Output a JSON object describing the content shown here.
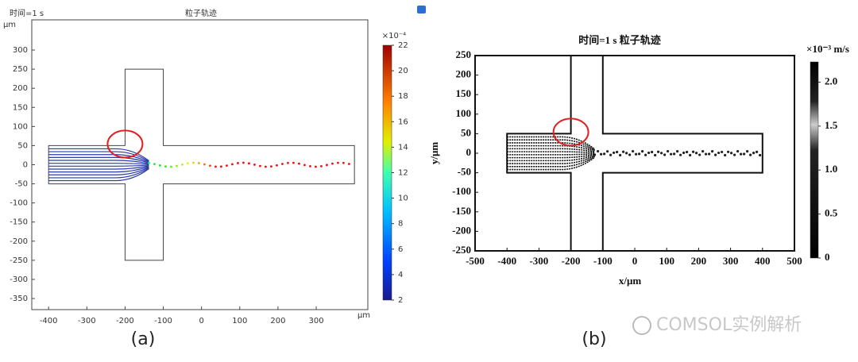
{
  "chart_data": [
    {
      "type": "trajectory",
      "subtitle": "时间=1 s",
      "title": "粒子轨迹",
      "y_label": "μm",
      "x_label": "μm",
      "xlim": [
        -444,
        435
      ],
      "xticks": [
        -400,
        -300,
        -200,
        -100,
        0,
        100,
        200,
        300
      ],
      "ylim": [
        -379,
        379
      ],
      "yticks": [
        -350,
        -300,
        -250,
        -200,
        -150,
        -100,
        -50,
        0,
        50,
        100,
        150,
        200,
        250,
        300
      ],
      "outline": {
        "x": [
          -400,
          -200,
          -200,
          -100,
          -100,
          400,
          400,
          -100,
          -100,
          -200,
          -200,
          -400
        ],
        "y": [
          50,
          50,
          250,
          250,
          50,
          50,
          -50,
          -50,
          -250,
          -250,
          -50,
          -50
        ]
      },
      "colorbar_label": "×10⁻⁴",
      "clim": [
        2,
        22
      ],
      "cticks": [
        2,
        4,
        6,
        8,
        10,
        12,
        14,
        16,
        18,
        20,
        22
      ]
    },
    {
      "type": "trajectory",
      "title": "时间=1 s 粒子轨迹",
      "y_label": "y/μm",
      "x_label": "x/μm",
      "xlim": [
        -500,
        500
      ],
      "xticks": [
        -500,
        -400,
        -300,
        -200,
        -100,
        0,
        100,
        200,
        300,
        400,
        500
      ],
      "ylim": [
        -250,
        250
      ],
      "yticks": [
        -250,
        -200,
        -150,
        -100,
        -50,
        0,
        50,
        100,
        150,
        200,
        250
      ],
      "outline": {
        "x": [
          -400,
          -200,
          -200,
          -100,
          -100,
          400,
          400,
          -100,
          -100,
          -200,
          -200,
          -400
        ],
        "y": [
          50,
          50,
          250,
          250,
          50,
          50,
          -50,
          -50,
          -250,
          -250,
          -50,
          -50
        ]
      },
      "colorbar_label": "×10⁻³ m/s",
      "clim": [
        0,
        2.23
      ],
      "cticks": [
        0,
        0.5,
        {
          "value": 1,
          "label": "1.0"
        },
        1.5,
        {
          "value": 2,
          "label": "2.0"
        }
      ]
    }
  ],
  "panel_labels": [
    "(a)",
    "(b)"
  ],
  "watermark": "COMSOL实例解析"
}
